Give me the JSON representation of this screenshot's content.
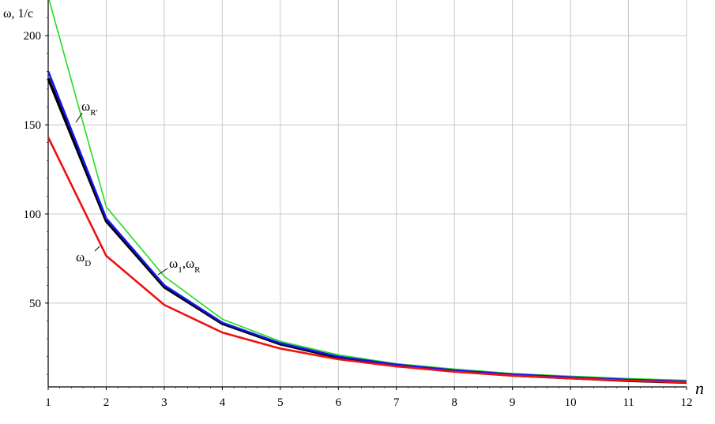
{
  "chart_data": {
    "type": "line",
    "ylabel": "ω, 1/c",
    "xlabel": "n",
    "x": [
      1,
      2,
      3,
      4,
      5,
      6,
      7,
      8,
      9,
      10,
      11,
      12
    ],
    "xticks": [
      "1",
      "2",
      "3",
      "4",
      "5",
      "6",
      "7",
      "8",
      "9",
      "10",
      "11",
      "12"
    ],
    "yticks": [
      "50",
      "100",
      "150",
      "200"
    ],
    "xlim": [
      1,
      12
    ],
    "ylim": [
      3,
      220
    ],
    "grid": true,
    "series": [
      {
        "color": "#22dd22",
        "values": [
          222,
          104,
          65,
          41,
          28.5,
          21,
          16,
          13,
          10.5,
          9,
          7.7,
          6.7
        ]
      },
      {
        "color": "#000000",
        "values": [
          176,
          96,
          59,
          38.5,
          27,
          19.5,
          15,
          12,
          9.5,
          8,
          6.5,
          5.5
        ]
      },
      {
        "color": "#1515ee",
        "values": [
          180,
          97.5,
          60,
          39,
          27.5,
          20,
          15.5,
          12.3,
          10,
          8.4,
          7,
          6
        ]
      },
      {
        "color": "#ee1111",
        "values": [
          143,
          76.5,
          49,
          33.5,
          24.5,
          18.5,
          14.5,
          11.5,
          9.3,
          7.8,
          6.5,
          5.5
        ]
      }
    ],
    "annotations": [
      {
        "text": "ω",
        "sub": "R'"
      },
      {
        "text": "ω",
        "sub": "1",
        "text2": ",ω",
        "sub2": "R"
      },
      {
        "text": "ω",
        "sub": "D"
      }
    ]
  }
}
